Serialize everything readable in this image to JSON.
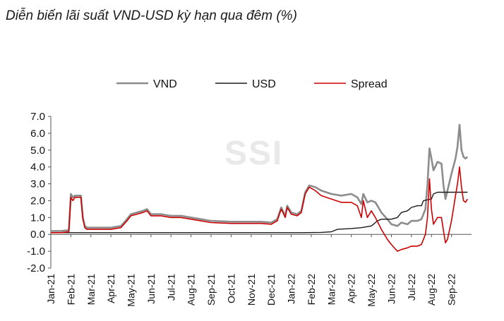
{
  "chart_data": {
    "type": "line",
    "title": "Diễn biến lãi suất VND-USD kỳ hạn qua đêm (%)",
    "watermark": "SSI",
    "xlabel": "",
    "ylabel": "",
    "ylim": [
      -2.0,
      7.0
    ],
    "y_ticks": [
      "7.0",
      "6.0",
      "5.0",
      "4.0",
      "3.0",
      "2.0",
      "1.0",
      "0.0",
      "-1.0",
      "-2.0"
    ],
    "x_tick_labels": [
      "Jan-21",
      "Feb-21",
      "Mar-21",
      "Apr-21",
      "May-21",
      "Jun-21",
      "Jul-21",
      "Aug-21",
      "Sep-21",
      "Oct-21",
      "Nov-21",
      "Dec-21",
      "Jan-22",
      "Feb-22",
      "Mar-22",
      "Apr-22",
      "May-22",
      "Jun-22",
      "Jul-22",
      "Aug-22",
      "Sep-22"
    ],
    "legend_position": "top",
    "grid": false,
    "colors": {
      "VND": "#8c8c8c",
      "USD": "#1a1a1a",
      "Spread": "#cc0000"
    },
    "series": [
      {
        "name": "VND",
        "points": [
          [
            0.0,
            0.2
          ],
          [
            0.5,
            0.2
          ],
          [
            0.9,
            0.25
          ],
          [
            1.0,
            2.4
          ],
          [
            1.1,
            2.2
          ],
          [
            1.2,
            2.3
          ],
          [
            1.5,
            2.3
          ],
          [
            1.6,
            1.0
          ],
          [
            1.7,
            0.5
          ],
          [
            1.8,
            0.4
          ],
          [
            2.5,
            0.4
          ],
          [
            3.0,
            0.4
          ],
          [
            3.5,
            0.5
          ],
          [
            3.8,
            0.9
          ],
          [
            4.0,
            1.2
          ],
          [
            4.3,
            1.3
          ],
          [
            4.6,
            1.4
          ],
          [
            4.8,
            1.5
          ],
          [
            5.0,
            1.2
          ],
          [
            5.5,
            1.2
          ],
          [
            6.0,
            1.1
          ],
          [
            6.5,
            1.1
          ],
          [
            7.0,
            1.0
          ],
          [
            7.5,
            0.9
          ],
          [
            8.0,
            0.8
          ],
          [
            9.0,
            0.75
          ],
          [
            10.0,
            0.75
          ],
          [
            10.5,
            0.75
          ],
          [
            11.0,
            0.7
          ],
          [
            11.3,
            0.9
          ],
          [
            11.5,
            1.6
          ],
          [
            11.7,
            1.1
          ],
          [
            11.8,
            1.7
          ],
          [
            12.0,
            1.3
          ],
          [
            12.3,
            1.2
          ],
          [
            12.5,
            1.4
          ],
          [
            12.7,
            2.5
          ],
          [
            12.9,
            2.9
          ],
          [
            13.2,
            2.8
          ],
          [
            13.5,
            2.6
          ],
          [
            14.0,
            2.4
          ],
          [
            14.5,
            2.3
          ],
          [
            15.0,
            2.4
          ],
          [
            15.3,
            2.2
          ],
          [
            15.5,
            1.8
          ],
          [
            15.6,
            2.4
          ],
          [
            15.8,
            1.9
          ],
          [
            16.0,
            2.0
          ],
          [
            16.2,
            1.9
          ],
          [
            16.5,
            1.3
          ],
          [
            16.8,
            0.9
          ],
          [
            17.0,
            0.6
          ],
          [
            17.3,
            0.5
          ],
          [
            17.5,
            0.7
          ],
          [
            17.8,
            0.6
          ],
          [
            18.0,
            0.8
          ],
          [
            18.3,
            0.8
          ],
          [
            18.5,
            0.9
          ],
          [
            18.7,
            1.5
          ],
          [
            18.8,
            3.0
          ],
          [
            18.9,
            5.1
          ],
          [
            19.0,
            4.5
          ],
          [
            19.1,
            3.8
          ],
          [
            19.3,
            4.3
          ],
          [
            19.5,
            4.2
          ],
          [
            19.6,
            2.9
          ],
          [
            19.7,
            2.1
          ],
          [
            19.8,
            2.6
          ],
          [
            20.0,
            3.6
          ],
          [
            20.2,
            4.5
          ],
          [
            20.3,
            5.2
          ],
          [
            20.4,
            6.5
          ],
          [
            20.5,
            5.0
          ],
          [
            20.6,
            4.6
          ],
          [
            20.7,
            4.5
          ],
          [
            20.8,
            4.6
          ]
        ]
      },
      {
        "name": "USD",
        "points": [
          [
            0.0,
            0.1
          ],
          [
            5.0,
            0.1
          ],
          [
            10.0,
            0.1
          ],
          [
            12.5,
            0.1
          ],
          [
            13.5,
            0.12
          ],
          [
            14.0,
            0.15
          ],
          [
            14.3,
            0.3
          ],
          [
            15.0,
            0.35
          ],
          [
            15.5,
            0.4
          ],
          [
            16.0,
            0.5
          ],
          [
            16.3,
            0.8
          ],
          [
            16.5,
            0.9
          ],
          [
            17.0,
            0.9
          ],
          [
            17.3,
            1.0
          ],
          [
            17.5,
            1.3
          ],
          [
            17.8,
            1.4
          ],
          [
            18.0,
            1.6
          ],
          [
            18.3,
            1.7
          ],
          [
            18.5,
            1.7
          ],
          [
            18.6,
            2.0
          ],
          [
            19.0,
            2.1
          ],
          [
            19.1,
            2.4
          ],
          [
            19.3,
            2.5
          ],
          [
            20.0,
            2.5
          ],
          [
            20.8,
            2.5
          ]
        ]
      },
      {
        "name": "Spread",
        "points": [
          [
            0.0,
            0.1
          ],
          [
            0.5,
            0.1
          ],
          [
            0.9,
            0.15
          ],
          [
            1.0,
            2.2
          ],
          [
            1.1,
            2.0
          ],
          [
            1.2,
            2.2
          ],
          [
            1.5,
            2.2
          ],
          [
            1.6,
            0.9
          ],
          [
            1.7,
            0.4
          ],
          [
            1.8,
            0.3
          ],
          [
            2.5,
            0.3
          ],
          [
            3.0,
            0.3
          ],
          [
            3.5,
            0.4
          ],
          [
            3.8,
            0.8
          ],
          [
            4.0,
            1.1
          ],
          [
            4.3,
            1.2
          ],
          [
            4.6,
            1.3
          ],
          [
            4.8,
            1.4
          ],
          [
            5.0,
            1.1
          ],
          [
            5.5,
            1.1
          ],
          [
            6.0,
            1.0
          ],
          [
            6.5,
            1.0
          ],
          [
            7.0,
            0.9
          ],
          [
            7.5,
            0.8
          ],
          [
            8.0,
            0.7
          ],
          [
            9.0,
            0.65
          ],
          [
            10.0,
            0.65
          ],
          [
            10.5,
            0.65
          ],
          [
            11.0,
            0.6
          ],
          [
            11.3,
            0.8
          ],
          [
            11.5,
            1.5
          ],
          [
            11.7,
            1.0
          ],
          [
            11.8,
            1.6
          ],
          [
            12.0,
            1.2
          ],
          [
            12.3,
            1.1
          ],
          [
            12.5,
            1.3
          ],
          [
            12.7,
            2.4
          ],
          [
            12.9,
            2.8
          ],
          [
            13.2,
            2.6
          ],
          [
            13.5,
            2.3
          ],
          [
            14.0,
            2.1
          ],
          [
            14.5,
            1.9
          ],
          [
            15.0,
            1.9
          ],
          [
            15.3,
            1.7
          ],
          [
            15.5,
            1.0
          ],
          [
            15.6,
            2.0
          ],
          [
            15.8,
            1.0
          ],
          [
            16.0,
            1.4
          ],
          [
            16.2,
            1.0
          ],
          [
            16.5,
            0.3
          ],
          [
            16.8,
            -0.3
          ],
          [
            17.0,
            -0.6
          ],
          [
            17.3,
            -1.0
          ],
          [
            17.5,
            -0.9
          ],
          [
            17.8,
            -0.8
          ],
          [
            18.0,
            -0.7
          ],
          [
            18.3,
            -0.7
          ],
          [
            18.5,
            -0.6
          ],
          [
            18.7,
            0.0
          ],
          [
            18.8,
            1.0
          ],
          [
            18.9,
            3.3
          ],
          [
            19.0,
            1.5
          ],
          [
            19.1,
            0.6
          ],
          [
            19.3,
            1.0
          ],
          [
            19.5,
            1.0
          ],
          [
            19.6,
            0.2
          ],
          [
            19.7,
            -0.5
          ],
          [
            19.8,
            -0.3
          ],
          [
            20.0,
            0.8
          ],
          [
            20.2,
            2.3
          ],
          [
            20.3,
            3.0
          ],
          [
            20.4,
            4.0
          ],
          [
            20.5,
            2.8
          ],
          [
            20.6,
            2.0
          ],
          [
            20.7,
            1.9
          ],
          [
            20.8,
            2.1
          ]
        ]
      }
    ]
  }
}
